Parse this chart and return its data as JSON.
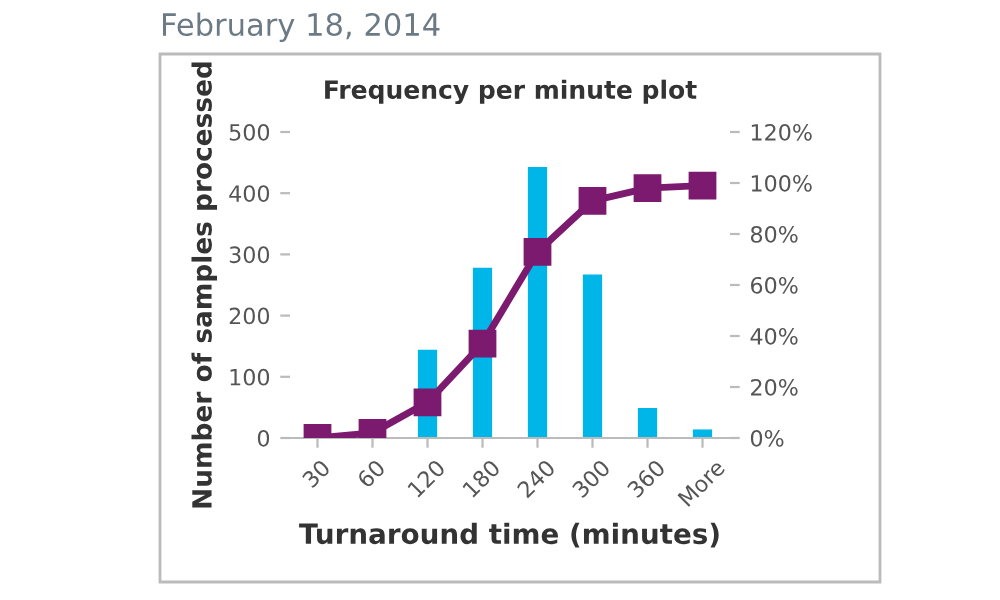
{
  "chart_data": {
    "type": "bar",
    "title": "Frequency per minute plot",
    "annotations": [
      "February 18, 2014"
    ],
    "xlabel": "Turnaround time (minutes)",
    "ylabel": "Number of samples processed",
    "categories": [
      "30",
      "60",
      "120",
      "180",
      "240",
      "300",
      "360",
      "More"
    ],
    "series": [
      {
        "color": "#00b5e8",
        "values": [
          0,
          0,
          144,
          278,
          443,
          267,
          49,
          14
        ]
      },
      {
        "type": "line",
        "axis": "y2",
        "color": "#7b1a6e",
        "values": [
          0,
          2,
          14,
          37,
          73,
          93,
          98,
          99
        ]
      }
    ],
    "ylim": [
      0,
      500
    ],
    "yticks": [
      0,
      100,
      200,
      300,
      400,
      500
    ],
    "y2lim": [
      0,
      120
    ],
    "y2ticks": [
      {
        "value": 0,
        "label": "0%"
      },
      {
        "value": 20,
        "label": "20%"
      },
      {
        "value": 40,
        "label": "40%"
      },
      {
        "value": 60,
        "label": "60%"
      },
      {
        "value": 80,
        "label": "80%"
      },
      {
        "value": 100,
        "label": "100%"
      },
      {
        "value": 120,
        "label": "120%"
      }
    ],
    "marker": "square",
    "grid": false,
    "legend": false
  }
}
